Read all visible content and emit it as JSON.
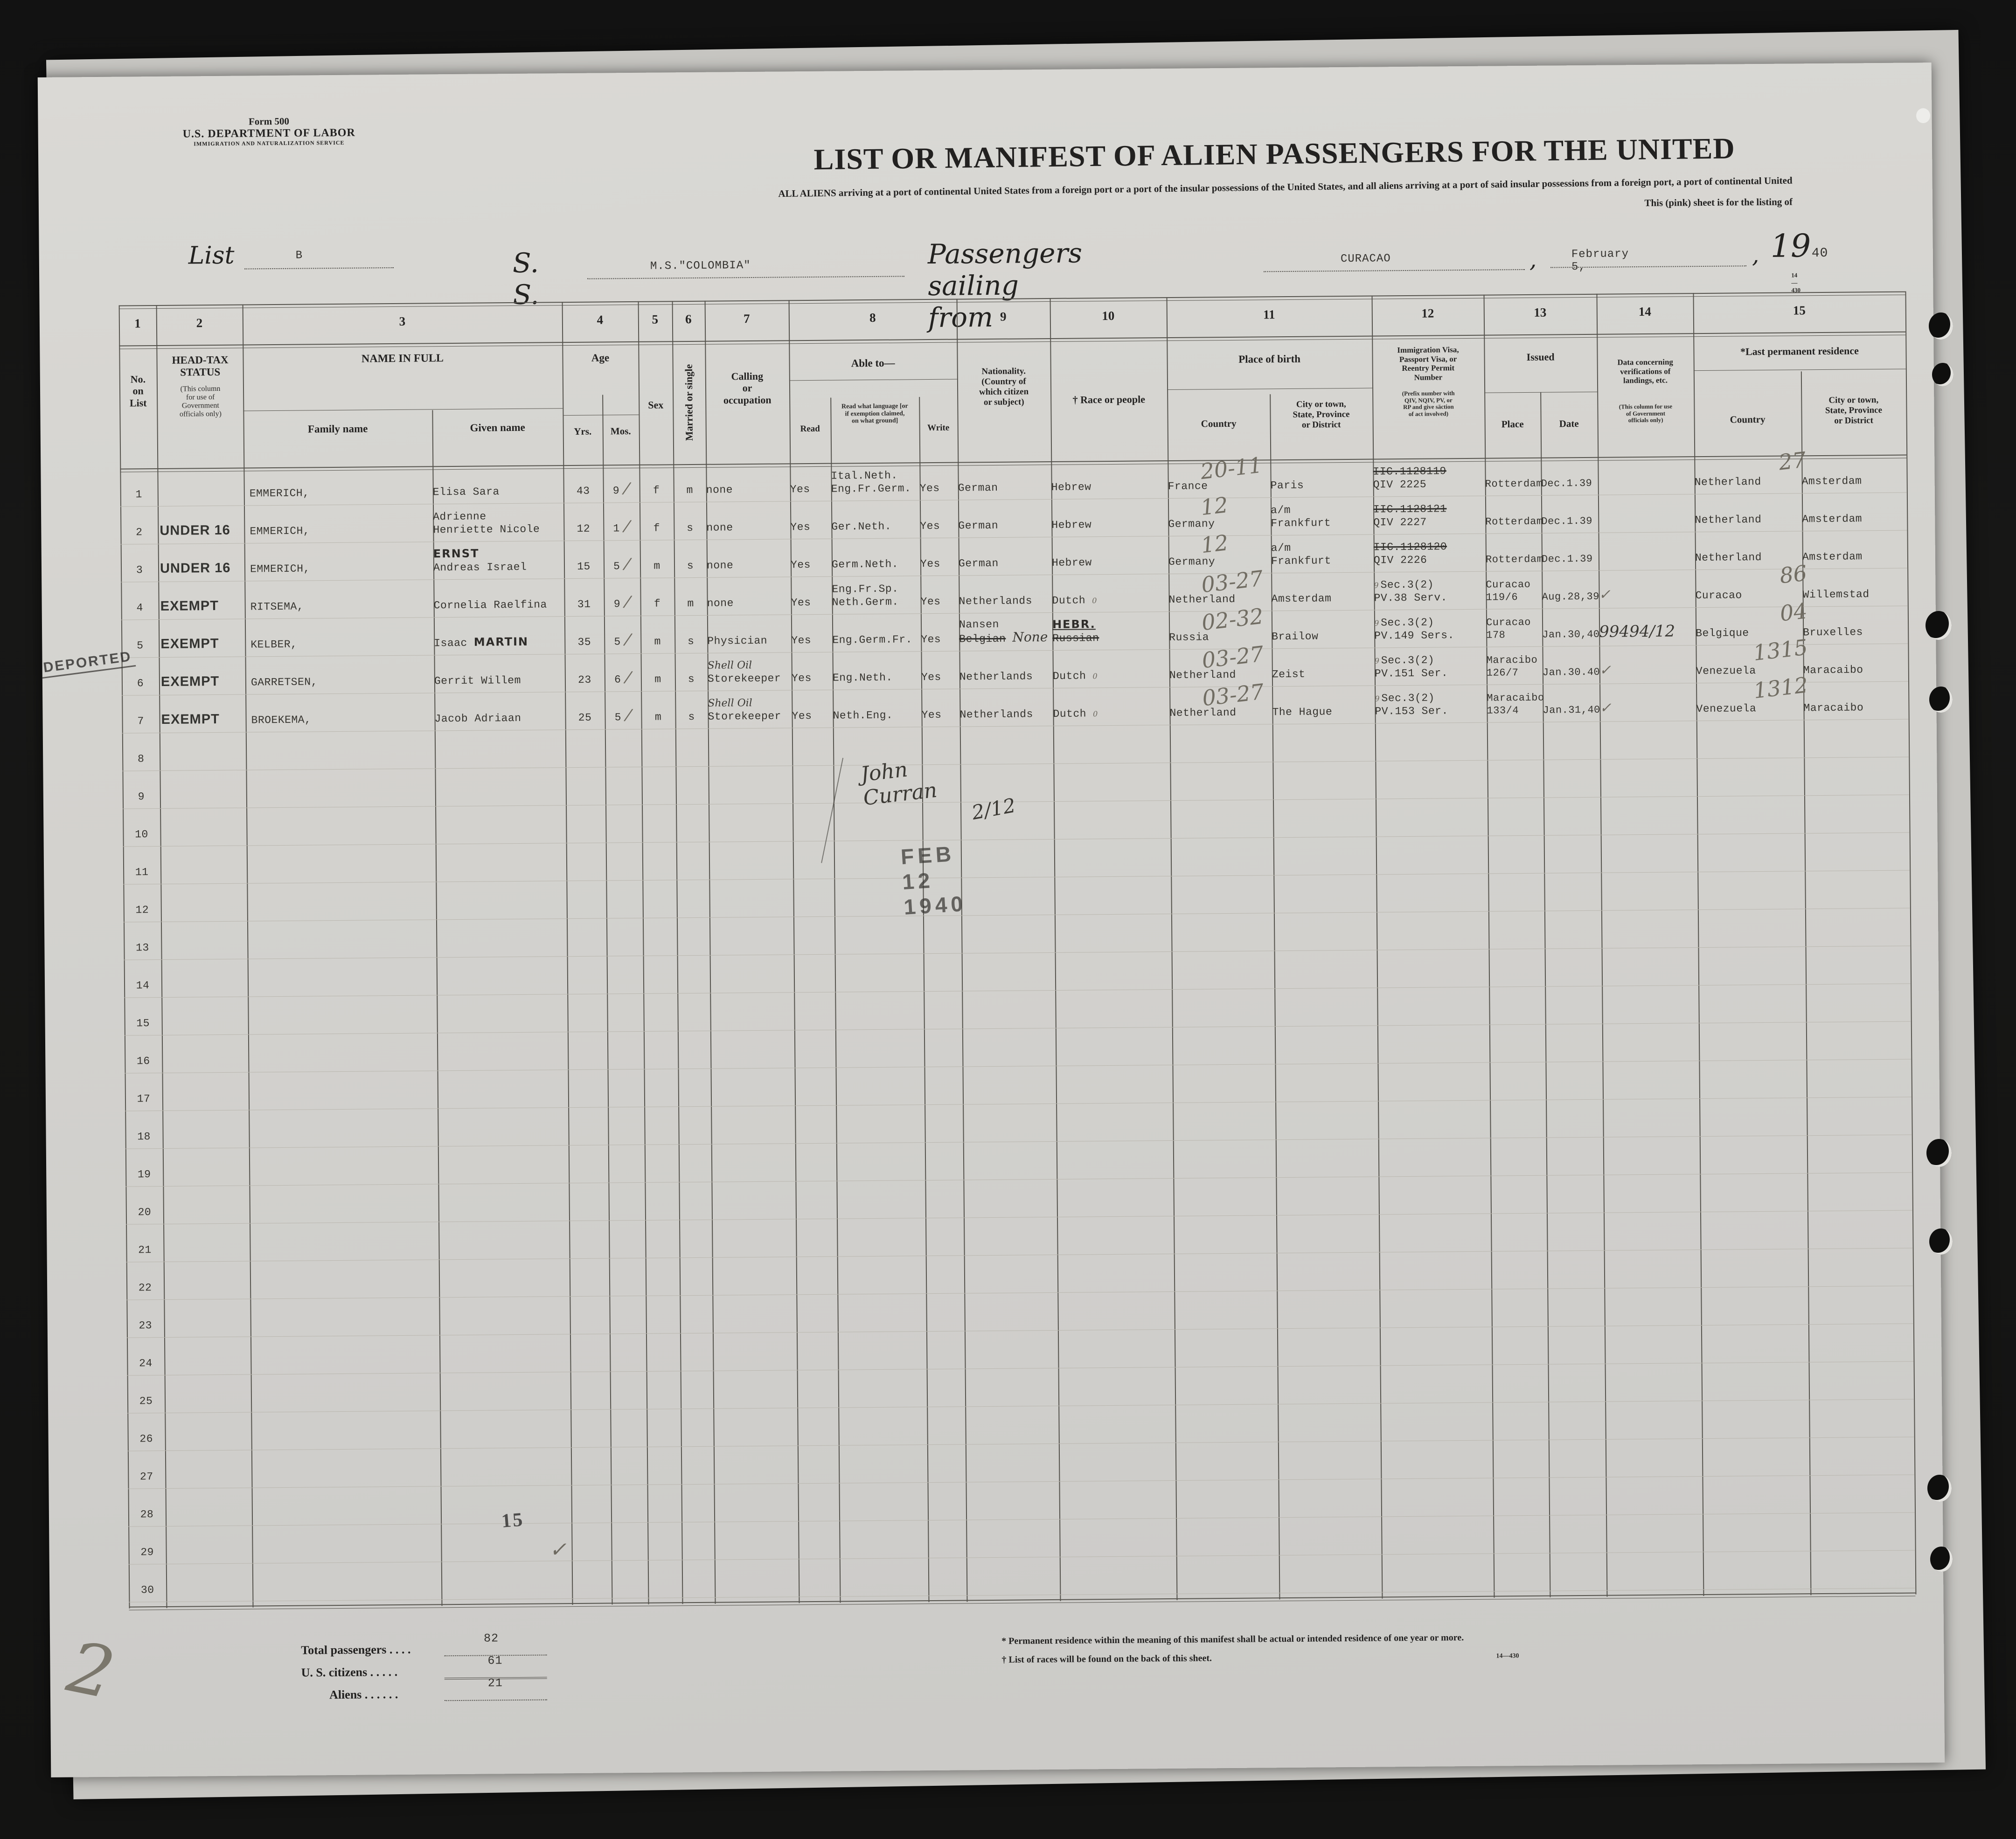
{
  "form": {
    "form_no": "Form 500",
    "department": "U.S. DEPARTMENT OF LABOR",
    "service": "IMMIGRATION AND NATURALIZATION SERVICE",
    "list_label": "List",
    "list_value": "B",
    "title": "LIST OR MANIFEST OF ALIEN PASSENGERS FOR THE UNITED",
    "subtitle1": "ALL ALIENS arriving at a port of continental United States from a foreign port or a port of the insular possessions of the United States, and all aliens arriving at a port of said insular possessions from a foreign port, a port of continental United",
    "subtitle2": "This (pink) sheet is for the listing of",
    "ss_label": "S. S.",
    "ship_name": "M.S.\"COLOMBIA\"",
    "sailing_label": "Passengers sailing from",
    "port": "CURACAO",
    "sail_date": "February 5,",
    "year_prefix": "19",
    "year_suffix": "40",
    "form_code": "14—430"
  },
  "header": {
    "n1": "1",
    "n2": "2",
    "n3": "3",
    "n4": "4",
    "n5": "5",
    "n6": "6",
    "n7": "7",
    "n8": "8",
    "n9": "9",
    "n10": "10",
    "n11": "11",
    "n12": "12",
    "n13": "13",
    "n14": "14",
    "n15": "15",
    "no_label": "No.\non\nList",
    "headtax": "HEAD-TAX\nSTATUS",
    "headtax_sub": "(This column\nfor use of\nGovernment\nofficials only)",
    "name": "NAME IN FULL",
    "family": "Family name",
    "given": "Given name",
    "age": "Age",
    "yrs": "Yrs.",
    "mos": "Mos.",
    "sex": "Sex",
    "married": "Married or single",
    "calling": "Calling\nor\noccupation",
    "able": "Able to—",
    "read": "Read",
    "readlang": "Read what language [or\nif exemption claimed,\non what ground]",
    "write": "Write",
    "nationality": "Nationality.\n(Country of\nwhich citizen\nor subject)",
    "race": "† Race or people",
    "pob": "Place of birth",
    "country": "Country",
    "city": "City or town,\nState, Province\nor District",
    "visa": "Immigration Visa,\nPassport Visa, or\nReentry Permit\nNumber",
    "visa_sub": "(Prefix number with\nQIV, NQIV, PV, or\nRP and give säction\nof act involved)",
    "issued": "Issued",
    "place": "Place",
    "date": "Date",
    "data": "Data concerning\nverifications of\nlandings, etc.",
    "data_sub": "(This column for use\nof Government\nofficials only)",
    "lastres": "*Last permanent residence",
    "res_country": "Country",
    "res_city": "City or town,\nState, Province\nor District"
  },
  "rows": [
    {
      "no": "1",
      "family": "EMMERICH,",
      "given": "Elisa Sara",
      "yrs": "43",
      "mos": "9",
      "slash": "/",
      "sex": "f",
      "ms": "m",
      "calling": "none",
      "read": "Yes",
      "lang1": "Ital.Neth.",
      "lang2": "Eng.Fr.Germ.",
      "write": "Yes",
      "nat": "German",
      "race": "Hebrew",
      "country_hw": "20-11",
      "country": "France",
      "city": "Paris",
      "visa1": "IIC.1128119",
      "visa1_struck": true,
      "visa2": "QIV 2225",
      "place": "Rotterdam",
      "date": "Dec.1.39",
      "res_hw": "27",
      "res_country": "Netherland",
      "res_city": "Amsterdam"
    },
    {
      "no": "2",
      "headtax": "UNDER 16",
      "family": "EMMERICH,",
      "given_above": "Adrienne",
      "given": "Henriette Nicole",
      "yrs": "12",
      "mos": "1",
      "slash": "/",
      "sex": "f",
      "ms": "s",
      "calling": "none",
      "read": "Yes",
      "lang2": "Ger.Neth.",
      "write": "Yes",
      "nat": "German",
      "race": "Hebrew",
      "country_hw": "12",
      "country": "Germany",
      "city_above": "a/m",
      "city": "Frankfurt",
      "visa1": "IIC.1128121",
      "visa1_struck": true,
      "visa2": "QIV 2227",
      "place": "Rotterdam",
      "date": "Dec.1.39",
      "res_country": "Netherland",
      "res_city": "Amsterdam"
    },
    {
      "no": "3",
      "headtax": "UNDER 16",
      "family": "EMMERICH,",
      "given_hw": "ERNST",
      "given": "Andreas Israel",
      "yrs": "15",
      "mos": "5",
      "slash": "/",
      "sex": "m",
      "ms": "s",
      "calling": "none",
      "read": "Yes",
      "lang2": "Germ.Neth.",
      "write": "Yes",
      "nat": "German",
      "race": "Hebrew",
      "country_hw": "12",
      "country": "Germany",
      "city_above": "a/m",
      "city": "Frankfurt",
      "visa1": "IIC.1128120",
      "visa1_struck": true,
      "visa2": "QIV 2226",
      "place": "Rotterdam",
      "date": "Dec.1.39",
      "res_country": "Netherland",
      "res_city": "Amsterdam"
    },
    {
      "no": "4",
      "headtax": "EXEMPT",
      "family": "RITSEMA,",
      "given": "Cornelia Raelfina",
      "yrs": "31",
      "mos": "9",
      "slash": "/",
      "sex": "f",
      "ms": "m",
      "calling": "none",
      "read": "Yes",
      "lang1": "Eng.Fr.Sp.",
      "lang2": "Neth.Germ.",
      "write": "Yes",
      "nat": "Netherlands",
      "race": "Dutch",
      "zero": "0",
      "country_hw": "03-27",
      "country": "Netherland",
      "city": "Amsterdam",
      "visa_pencil": "9",
      "visa1": "Sec.3(2)",
      "visa2": "PV.38 Serv.",
      "place_above": "Curacao",
      "place": "119/6",
      "date": "Aug.28,39",
      "verif_check": "✓",
      "res_hw": "86",
      "res_country": "Curacao",
      "res_city": "Willemstad"
    },
    {
      "no": "5",
      "headtax": "EXEMPT",
      "family": "KELBER,",
      "given": "Isaac",
      "given_suffix_hw": "MARTIN",
      "yrs": "35",
      "mos": "5",
      "slash": "/",
      "sex": "m",
      "ms": "s",
      "calling": "Physician",
      "read": "Yes",
      "lang2": "Eng.Germ.Fr.",
      "write": "Yes",
      "nat_above": "Nansen",
      "nat": "Belgian",
      "nat_struck": true,
      "nat_hw": "None",
      "race_hw": "HEBR.",
      "race": "Russian",
      "race_struck": true,
      "country_hw": "02-32",
      "country": "Russia",
      "city": "Brailow",
      "visa_pencil": "9",
      "visa1": "Sec.3(2)",
      "visa2": "PV.149 Sers.",
      "place_above": "Curacao",
      "place": "178",
      "date": "Jan.30,40",
      "verif": "99494/12",
      "res_hw": "04",
      "res_country": "Belgique",
      "res_city": "Bruxelles"
    },
    {
      "no": "6",
      "headtax": "EXEMPT",
      "family": "GARRETSEN,",
      "given": "Gerrit Willem",
      "yrs": "23",
      "mos": "6",
      "slash": "/",
      "sex": "m",
      "ms": "s",
      "calling_hw": "Shell Oil",
      "calling": "Storekeeper",
      "read": "Yes",
      "lang2": "Eng.Neth.",
      "write": "Yes",
      "nat": "Netherlands",
      "race": "Dutch",
      "zero": "0",
      "country_hw": "03-27",
      "country": "Netherland",
      "city": "Zeist",
      "visa_pencil": "9",
      "visa1": "Sec.3(2)",
      "visa2": "PV.151 Ser.",
      "place_above": "Maracibo",
      "place": "126/7",
      "date": "Jan.30.40",
      "verif_check": "✓",
      "res_hw": "1315",
      "res_country": "Venezuela",
      "res_city": "Maracaibo"
    },
    {
      "no": "7",
      "headtax": "EXEMPT",
      "family": "BROEKEMA,",
      "given": "Jacob Adriaan",
      "yrs": "25",
      "mos": "5",
      "slash": "/",
      "sex": "m",
      "ms": "s",
      "calling_hw": "Shell Oil",
      "calling": "Storekeeper",
      "read": "Yes",
      "lang2": "Neth.Eng.",
      "write": "Yes",
      "nat": "Netherlands",
      "race": "Dutch",
      "zero": "0",
      "country_hw": "03-27",
      "country": "Netherland",
      "city": "The Hague",
      "visa_pencil": "9",
      "visa1": "Sec.3(2)",
      "visa2": "PV.153 Ser.",
      "place_above": "Maracaibo",
      "place": "133/4",
      "date": "Jan.31,40",
      "verif_check": "✓",
      "res_hw": "1312",
      "res_country": "Venezuela",
      "res_city": "Maracaibo"
    },
    {
      "no": "8"
    },
    {
      "no": "9"
    },
    {
      "no": "10"
    },
    {
      "no": "11"
    },
    {
      "no": "12"
    },
    {
      "no": "13"
    },
    {
      "no": "14"
    },
    {
      "no": "15"
    },
    {
      "no": "16"
    },
    {
      "no": "17"
    },
    {
      "no": "18"
    },
    {
      "no": "19"
    },
    {
      "no": "20"
    },
    {
      "no": "21"
    },
    {
      "no": "22"
    },
    {
      "no": "23"
    },
    {
      "no": "24"
    },
    {
      "no": "25"
    },
    {
      "no": "26"
    },
    {
      "no": "27"
    },
    {
      "no": "28"
    },
    {
      "no": "29"
    },
    {
      "no": "30"
    }
  ],
  "annotations": {
    "deported_stamp": "DEPORTED",
    "signature": "John Curran",
    "signature2": "2/12",
    "date_stamp": "FEB 12 1940",
    "sheet_stamp": "15",
    "sheet_check": "✓",
    "pencil_mark": "2"
  },
  "totals": {
    "passengers_label": "Total passengers  .   .   .   .",
    "passengers_value": "82",
    "citizens_label": "U. S. citizens  .   .   .   .   .",
    "citizens_value": "61",
    "aliens_label": "Aliens .   .   .   .   .   .",
    "aliens_value": "21"
  },
  "footnotes": {
    "note1": "* Permanent residence within the meaning of this manifest shall be actual or intended residence of one year or more.",
    "note2": "† List of races will be found on the back of this sheet.",
    "code": "14—430"
  }
}
